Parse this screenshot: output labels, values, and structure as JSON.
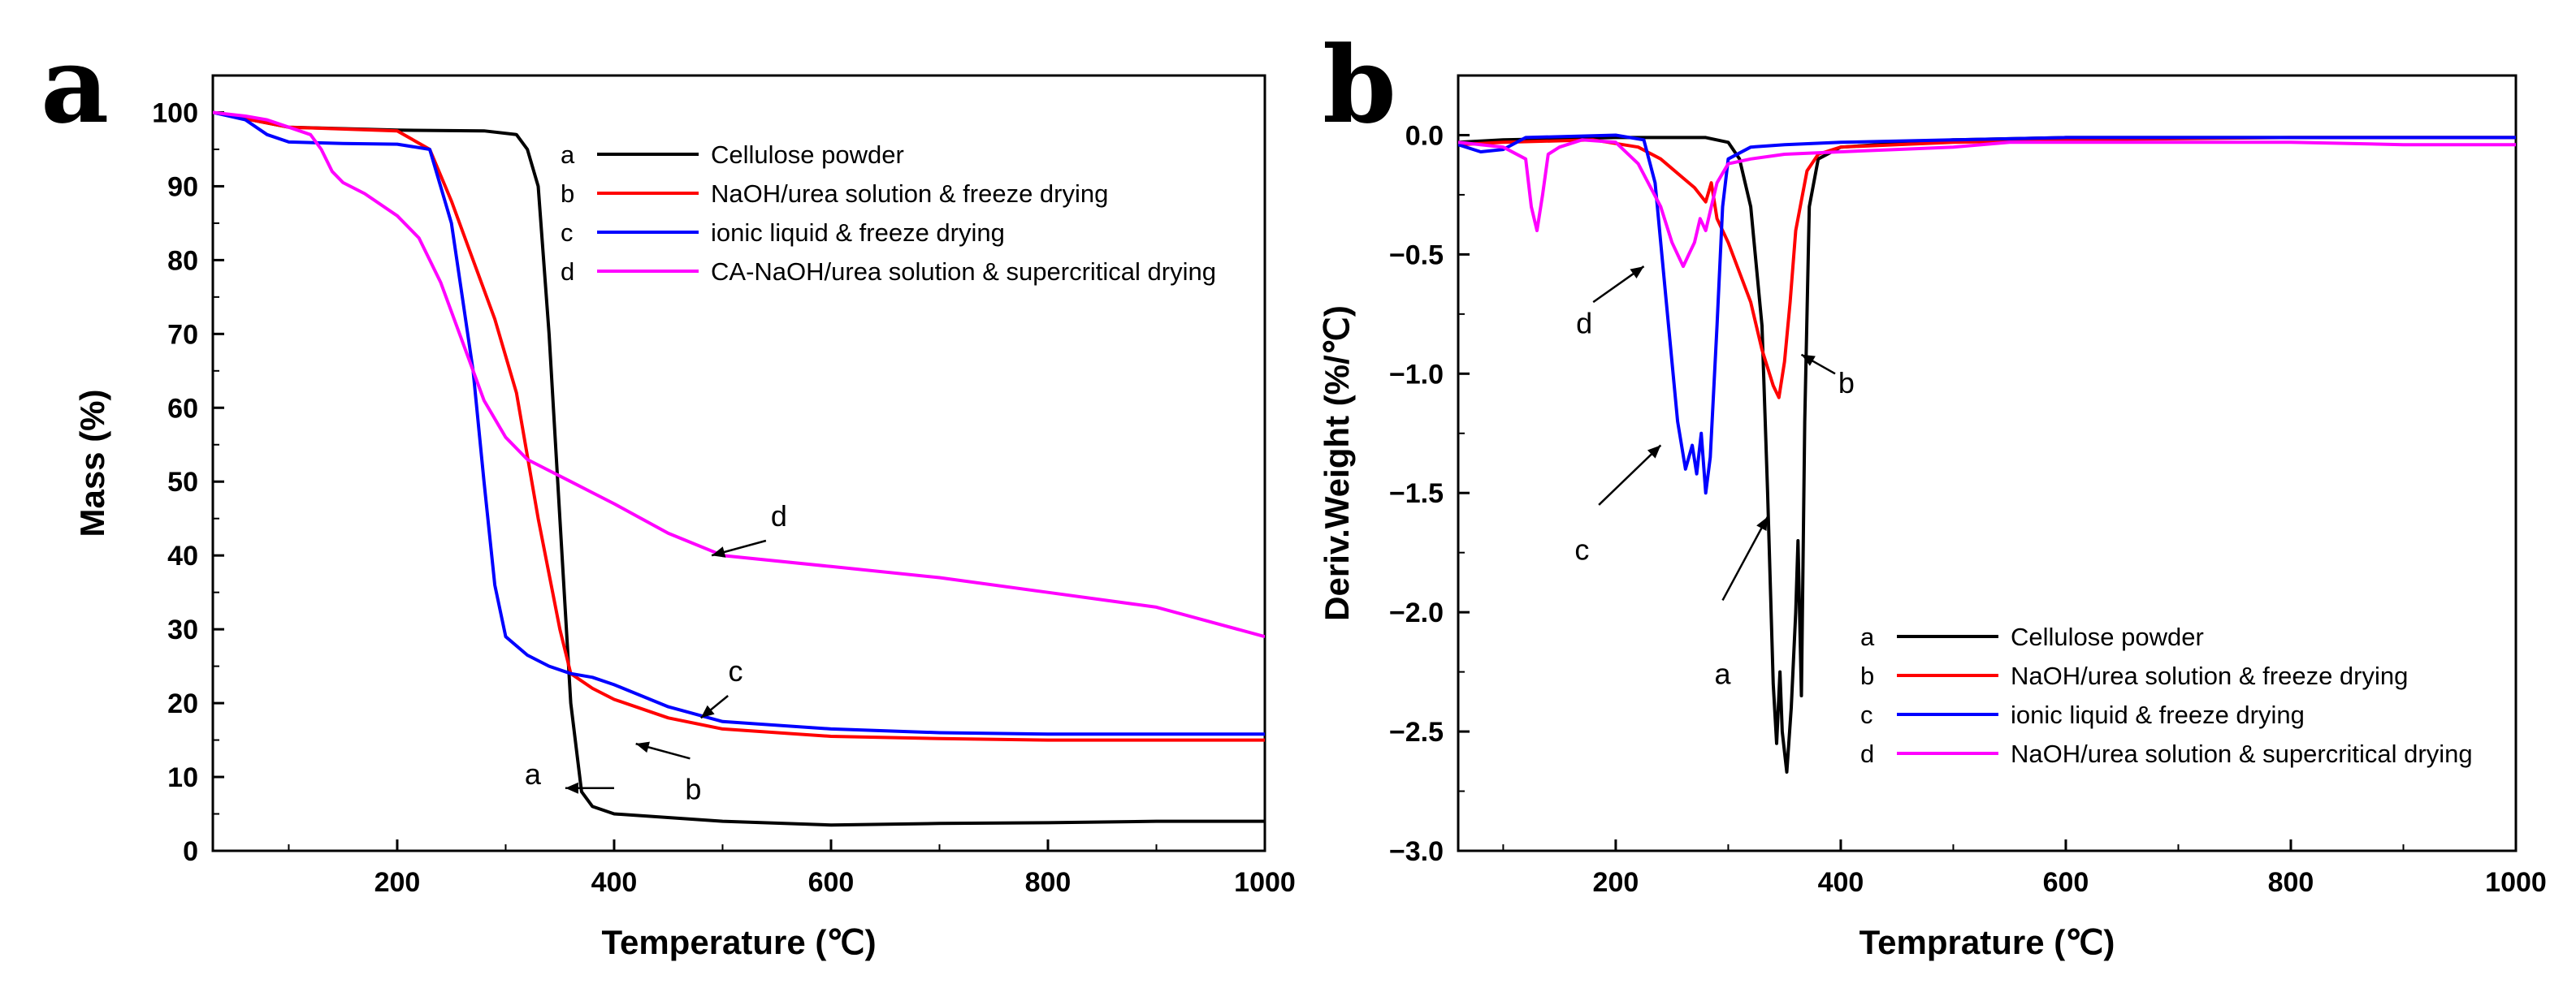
{
  "chart_data": [
    {
      "panel": "a",
      "type": "line",
      "title": "",
      "xlabel": "Temperature (℃)",
      "ylabel": "Mass (%)",
      "xlim": [
        30,
        1000
      ],
      "ylim": [
        0,
        105
      ],
      "xticks": [
        200,
        400,
        600,
        800,
        1000
      ],
      "yticks": [
        0,
        10,
        20,
        30,
        40,
        50,
        60,
        70,
        80,
        90,
        100
      ],
      "legend": [
        {
          "key": "a",
          "label": "Cellulose powder",
          "color": "#000000"
        },
        {
          "key": "b",
          "label": "NaOH/urea solution & freeze drying",
          "color": "#ff0000"
        },
        {
          "key": "c",
          "label": "ionic liquid & freeze drying",
          "color": "#0000ff"
        },
        {
          "key": "d",
          "label": "CA-NaOH/urea solution & supercritical drying",
          "color": "#ff00ff"
        }
      ],
      "series": [
        {
          "key": "a",
          "color": "#000000",
          "x": [
            30,
            100,
            200,
            280,
            310,
            320,
            330,
            340,
            350,
            360,
            370,
            380,
            400,
            500,
            600,
            700,
            800,
            900,
            1000
          ],
          "y": [
            100,
            98,
            97.6,
            97.5,
            97,
            95,
            90,
            70,
            45,
            20,
            8,
            6,
            5,
            4,
            3.5,
            3.7,
            3.8,
            4,
            4
          ]
        },
        {
          "key": "b",
          "color": "#ff0000",
          "x": [
            30,
            100,
            200,
            230,
            250,
            270,
            290,
            310,
            330,
            350,
            360,
            380,
            400,
            450,
            500,
            600,
            700,
            800,
            900,
            1000
          ],
          "y": [
            100,
            98,
            97.5,
            95,
            88,
            80,
            72,
            62,
            45,
            30,
            24,
            22,
            20.5,
            18,
            16.5,
            15.5,
            15.2,
            15,
            15,
            15
          ]
        },
        {
          "key": "c",
          "color": "#0000ff",
          "x": [
            30,
            60,
            80,
            100,
            150,
            200,
            230,
            250,
            260,
            270,
            280,
            290,
            300,
            320,
            340,
            360,
            380,
            400,
            450,
            500,
            600,
            700,
            800,
            900,
            1000
          ],
          "y": [
            100,
            99,
            97,
            96,
            95.8,
            95.7,
            95,
            85,
            75,
            65,
            50,
            36,
            29,
            26.5,
            25,
            24,
            23.5,
            22.5,
            19.5,
            17.5,
            16.5,
            16,
            15.8,
            15.8,
            15.8
          ]
        },
        {
          "key": "d",
          "color": "#ff00ff",
          "x": [
            30,
            60,
            80,
            100,
            120,
            130,
            140,
            150,
            170,
            200,
            220,
            240,
            260,
            280,
            300,
            320,
            340,
            360,
            380,
            400,
            450,
            500,
            600,
            700,
            800,
            900,
            1000
          ],
          "y": [
            100,
            99.5,
            99,
            98,
            97,
            95,
            92,
            90.5,
            89,
            86,
            83,
            77,
            69,
            61,
            56,
            53,
            51.5,
            50,
            48.5,
            47,
            43,
            40,
            38.5,
            37,
            35,
            33,
            29
          ]
        }
      ],
      "annotations": [
        {
          "label": "a",
          "x": 325,
          "y": 9
        },
        {
          "label": "b",
          "x": 473,
          "y": 7
        },
        {
          "label": "c",
          "x": 512,
          "y": 23
        },
        {
          "label": "d",
          "x": 552,
          "y": 44
        }
      ]
    },
    {
      "panel": "b",
      "type": "line",
      "title": "",
      "xlabel": "Temprature (℃)",
      "ylabel": "Deriv.Weight (%/℃)",
      "xlim": [
        60,
        1000
      ],
      "ylim": [
        -3.0,
        0.25
      ],
      "xticks": [
        200,
        400,
        600,
        800,
        1000
      ],
      "yticks": [
        0.0,
        -0.5,
        -1.0,
        -1.5,
        -2.0,
        -2.5,
        -3.0
      ],
      "ytick_labels": [
        "0.0",
        "−0.5",
        "−1.0",
        "−1.5",
        "−2.0",
        "−2.5",
        "−3.0"
      ],
      "legend": [
        {
          "key": "a",
          "label": "Cellulose powder",
          "color": "#000000"
        },
        {
          "key": "b",
          "label": "NaOH/urea solution & freeze drying",
          "color": "#ff0000"
        },
        {
          "key": "c",
          "label": "ionic liquid & freeze drying",
          "color": "#0000ff"
        },
        {
          "key": "d",
          "label": "NaOH/urea solution & supercritical drying",
          "color": "#ff00ff"
        }
      ],
      "series": [
        {
          "key": "a",
          "color": "#000000",
          "x": [
            60,
            100,
            200,
            280,
            300,
            310,
            320,
            330,
            335,
            340,
            343,
            346,
            348,
            352,
            356,
            360,
            362,
            365,
            368,
            372,
            380,
            400,
            500,
            600,
            700,
            800,
            1000
          ],
          "y": [
            -0.03,
            -0.02,
            -0.01,
            -0.01,
            -0.03,
            -0.1,
            -0.3,
            -0.8,
            -1.5,
            -2.3,
            -2.55,
            -2.25,
            -2.5,
            -2.67,
            -2.4,
            -2.0,
            -1.7,
            -2.35,
            -1.2,
            -0.3,
            -0.1,
            -0.05,
            -0.02,
            -0.01,
            -0.01,
            -0.01,
            -0.01
          ]
        },
        {
          "key": "b",
          "color": "#ff0000",
          "x": [
            60,
            100,
            180,
            220,
            240,
            260,
            270,
            280,
            285,
            290,
            300,
            320,
            330,
            340,
            345,
            350,
            355,
            360,
            370,
            380,
            400,
            500,
            600,
            800,
            1000
          ],
          "y": [
            -0.04,
            -0.03,
            -0.02,
            -0.05,
            -0.1,
            -0.18,
            -0.22,
            -0.28,
            -0.2,
            -0.35,
            -0.45,
            -0.7,
            -0.9,
            -1.05,
            -1.1,
            -0.95,
            -0.7,
            -0.4,
            -0.15,
            -0.08,
            -0.05,
            -0.03,
            -0.02,
            -0.01,
            -0.01
          ]
        },
        {
          "key": "c",
          "color": "#0000ff",
          "x": [
            60,
            80,
            100,
            120,
            200,
            225,
            235,
            245,
            255,
            262,
            268,
            272,
            276,
            280,
            284,
            290,
            295,
            300,
            320,
            350,
            400,
            500,
            600,
            800,
            1000
          ],
          "y": [
            -0.04,
            -0.07,
            -0.06,
            -0.01,
            0.0,
            -0.02,
            -0.2,
            -0.7,
            -1.2,
            -1.4,
            -1.3,
            -1.42,
            -1.25,
            -1.5,
            -1.35,
            -0.8,
            -0.3,
            -0.1,
            -0.05,
            -0.04,
            -0.03,
            -0.02,
            -0.01,
            -0.01,
            -0.01
          ]
        },
        {
          "key": "d",
          "color": "#ff00ff",
          "x": [
            60,
            80,
            100,
            120,
            125,
            130,
            135,
            140,
            150,
            170,
            200,
            220,
            240,
            250,
            260,
            265,
            270,
            275,
            280,
            285,
            290,
            300,
            320,
            350,
            400,
            450,
            500,
            550,
            600,
            700,
            800,
            900,
            1000
          ],
          "y": [
            -0.03,
            -0.04,
            -0.05,
            -0.1,
            -0.3,
            -0.4,
            -0.25,
            -0.08,
            -0.05,
            -0.02,
            -0.03,
            -0.12,
            -0.3,
            -0.45,
            -0.55,
            -0.5,
            -0.45,
            -0.35,
            -0.4,
            -0.3,
            -0.2,
            -0.12,
            -0.1,
            -0.08,
            -0.07,
            -0.06,
            -0.05,
            -0.03,
            -0.03,
            -0.03,
            -0.03,
            -0.04,
            -0.04
          ]
        }
      ],
      "annotations": [
        {
          "label": "a",
          "x": 295,
          "y": -2.3
        },
        {
          "label": "b",
          "x": 405,
          "y": -1.08
        },
        {
          "label": "c",
          "x": 170,
          "y": -1.78
        },
        {
          "label": "d",
          "x": 172,
          "y": -0.83
        }
      ]
    }
  ]
}
